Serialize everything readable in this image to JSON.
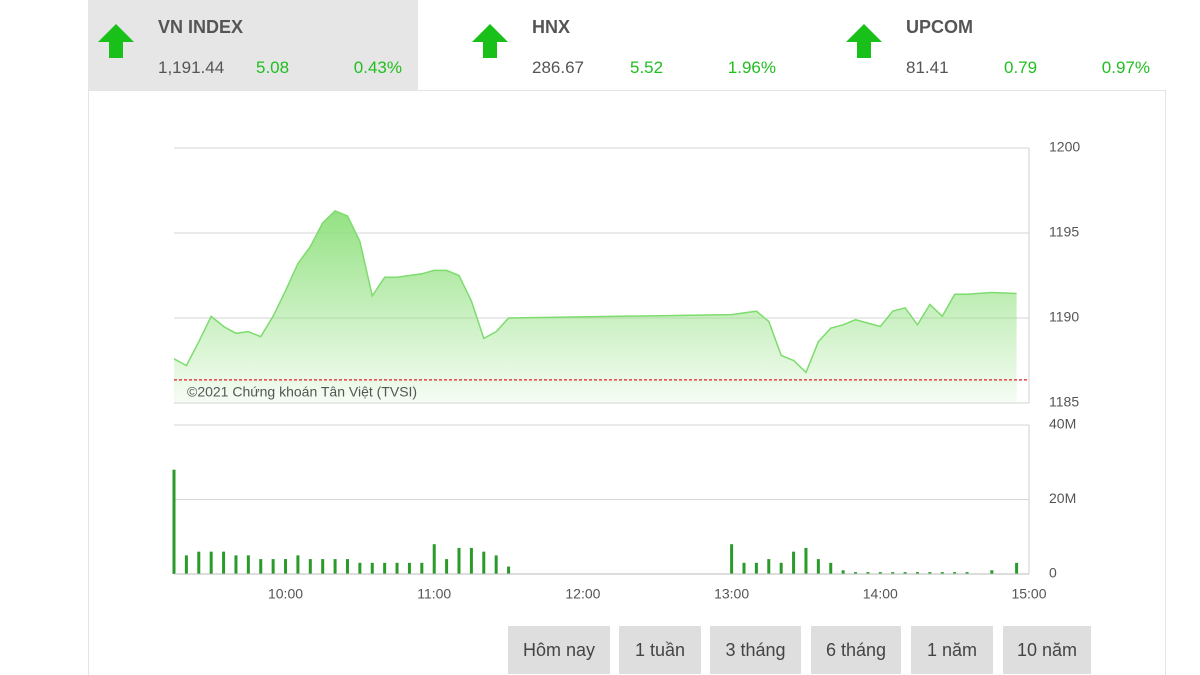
{
  "indices": [
    {
      "name": "VN INDEX",
      "value": "1,191.44",
      "change": "5.08",
      "percent": "0.43%"
    },
    {
      "name": "HNX",
      "value": "286.67",
      "change": "5.52",
      "percent": "1.96%"
    },
    {
      "name": "UPCOM",
      "value": "81.41",
      "change": "0.79",
      "percent": "0.97%"
    }
  ],
  "copyright": "©2021 Chứng khoán Tân Việt (TVSI)",
  "buttons": [
    "Hôm nay",
    "1 tuần",
    "3 tháng",
    "6 tháng",
    "1 năm",
    "10 năm"
  ],
  "chart_data": [
    {
      "type": "area",
      "color": "#7ddc6e",
      "ylim": [
        1185,
        1200
      ],
      "yticks": [
        1185,
        1190,
        1195,
        1200
      ],
      "grid": true,
      "reference_line": 1186.36,
      "reference_color": "#e02020",
      "xlim": [
        "09:15",
        "15:00"
      ],
      "x": [
        "09:15",
        "09:20",
        "09:25",
        "09:30",
        "09:35",
        "09:40",
        "09:45",
        "09:50",
        "09:55",
        "10:00",
        "10:05",
        "10:10",
        "10:15",
        "10:20",
        "10:25",
        "10:30",
        "10:35",
        "10:40",
        "10:45",
        "10:50",
        "10:55",
        "11:00",
        "11:05",
        "11:10",
        "11:15",
        "11:20",
        "11:25",
        "11:30",
        "13:00",
        "13:05",
        "13:10",
        "13:15",
        "13:20",
        "13:25",
        "13:30",
        "13:35",
        "13:40",
        "13:45",
        "13:50",
        "13:55",
        "14:00",
        "14:05",
        "14:10",
        "14:15",
        "14:20",
        "14:25",
        "14:30",
        "14:35",
        "14:45",
        "14:55"
      ],
      "values": [
        1187.6,
        1187.2,
        1188.6,
        1190.1,
        1189.5,
        1189.1,
        1189.2,
        1188.9,
        1190.1,
        1191.6,
        1193.2,
        1194.2,
        1195.6,
        1196.3,
        1196.0,
        1194.5,
        1191.3,
        1192.4,
        1192.4,
        1192.5,
        1192.6,
        1192.8,
        1192.8,
        1192.5,
        1191.0,
        1188.8,
        1189.2,
        1190.0,
        1190.2,
        1190.3,
        1190.4,
        1189.8,
        1187.8,
        1187.5,
        1186.8,
        1188.6,
        1189.4,
        1189.6,
        1189.9,
        1189.7,
        1189.5,
        1190.4,
        1190.6,
        1189.6,
        1190.8,
        1190.1,
        1191.4,
        1191.4,
        1191.5,
        1191.44
      ]
    },
    {
      "type": "bar",
      "color": "#2a9a2a",
      "ylim": [
        0,
        40
      ],
      "yticks": [
        0,
        {
          "value": 20,
          "label": "20M"
        },
        {
          "value": 40,
          "label": "40M"
        }
      ],
      "grid": true,
      "xlim": [
        "09:15",
        "15:00"
      ],
      "xticks": [
        "10:00",
        "11:00",
        "12:00",
        "13:00",
        "14:00",
        "15:00"
      ],
      "x": [
        "09:15",
        "09:20",
        "09:25",
        "09:30",
        "09:35",
        "09:40",
        "09:45",
        "09:50",
        "09:55",
        "10:00",
        "10:05",
        "10:10",
        "10:15",
        "10:20",
        "10:25",
        "10:30",
        "10:35",
        "10:40",
        "10:45",
        "10:50",
        "10:55",
        "11:00",
        "11:05",
        "11:10",
        "11:15",
        "11:20",
        "11:25",
        "11:30",
        "13:00",
        "13:05",
        "13:10",
        "13:15",
        "13:20",
        "13:25",
        "13:30",
        "13:35",
        "13:40",
        "13:45",
        "13:50",
        "13:55",
        "14:00",
        "14:05",
        "14:10",
        "14:15",
        "14:20",
        "14:25",
        "14:30",
        "14:35",
        "14:45",
        "14:55"
      ],
      "values": [
        28,
        5,
        6,
        6,
        6,
        5,
        5,
        4,
        4,
        4,
        5,
        4,
        4,
        4,
        4,
        3,
        3,
        3,
        3,
        3,
        3,
        8,
        4,
        7,
        7,
        6,
        5,
        2,
        8,
        3,
        3,
        4,
        3,
        6,
        7,
        4,
        3,
        1,
        0.5,
        0.5,
        0.5,
        0.5,
        0.5,
        0.5,
        0.5,
        0.5,
        0.5,
        0.5,
        1,
        3
      ]
    }
  ]
}
